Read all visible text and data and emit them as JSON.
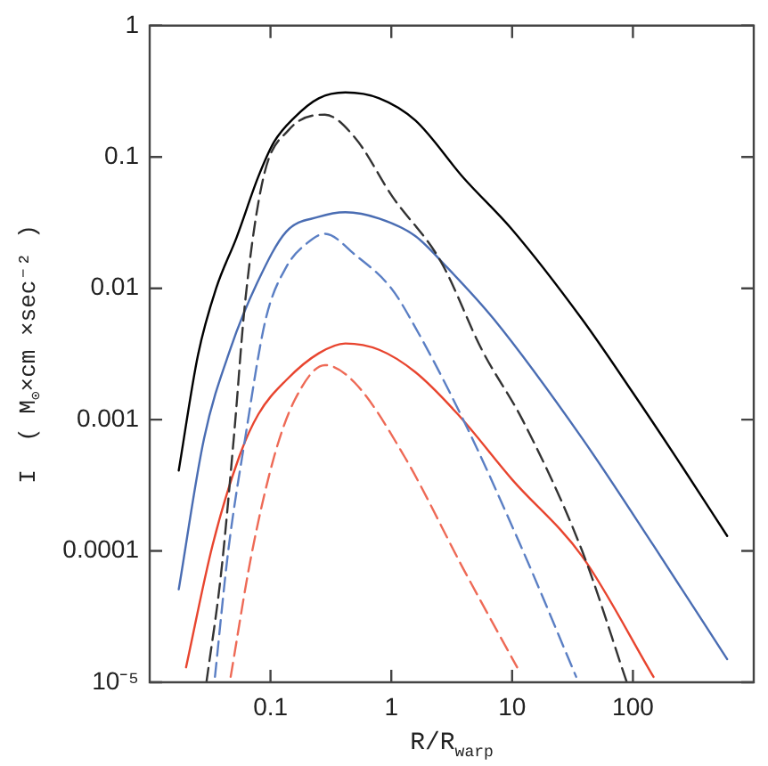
{
  "chart_data": {
    "type": "line",
    "xlabel": "R/R$_{warp}$",
    "ylabel": "I  ( M$_{⊙}$×cm ×sec⁻² )",
    "log": "xy",
    "grid": false,
    "legend": false,
    "marker": "none",
    "xlim": [
      0.01,
      1000
    ],
    "xticks": [
      0.1,
      1,
      10,
      100
    ],
    "ylim": [
      1e-05,
      1
    ],
    "yticks": [
      {
        "value": 1e-05,
        "label": "10⁻⁵"
      },
      0.0001,
      0.001,
      0.01,
      0.1,
      1
    ],
    "series": [
      {
        "color": "#000000",
        "line_style": "solid",
        "x": [
          0.0174,
          0.0251,
          0.0355,
          0.0525,
          0.0794,
          0.107,
          0.158,
          0.251,
          0.417,
          0.794,
          1.58,
          3.98,
          10,
          38,
          100,
          251,
          603
        ],
        "values": [
          0.00041,
          0.0031,
          0.01,
          0.0245,
          0.071,
          0.13,
          0.2,
          0.28,
          0.31,
          0.28,
          0.19,
          0.069,
          0.028,
          0.0058,
          0.0016,
          0.00045,
          0.00013
        ]
      },
      {
        "color": "#333333",
        "line_style": "dashed",
        "x": [
          0.0295,
          0.0389,
          0.0501,
          0.0617,
          0.0871,
          0.141,
          0.282,
          0.501,
          1.02,
          2.57,
          5.62,
          12.3,
          38,
          89
        ],
        "values": [
          1e-05,
          6.6e-05,
          0.00079,
          0.0079,
          0.069,
          0.16,
          0.21,
          0.14,
          0.05,
          0.016,
          0.0034,
          0.00098,
          0.0001,
          1e-05
        ]
      },
      {
        "color": "#4a6db3",
        "line_style": "solid",
        "x": [
          0.0174,
          0.0282,
          0.0468,
          0.0776,
          0.135,
          0.251,
          0.417,
          0.794,
          1.58,
          2.88,
          7.08,
          38,
          148,
          603
        ],
        "values": [
          5.1e-05,
          0.00072,
          0.0035,
          0.011,
          0.027,
          0.035,
          0.038,
          0.034,
          0.025,
          0.0145,
          0.0058,
          0.00072,
          0.00011,
          1.5e-05
        ]
      },
      {
        "color": "#5b7fc4",
        "line_style": "dashed",
        "x": [
          0.0347,
          0.0447,
          0.0617,
          0.0912,
          0.135,
          0.2,
          0.282,
          0.501,
          1,
          1.45,
          3.98,
          12.3,
          33.9
        ],
        "values": [
          1.1e-05,
          0.0001,
          0.00072,
          0.0058,
          0.0145,
          0.022,
          0.026,
          0.018,
          0.01,
          0.0058,
          0.00098,
          0.0001,
          1.1e-05
        ]
      },
      {
        "color": "#e8452f",
        "line_style": "solid",
        "x": [
          0.02,
          0.0331,
          0.055,
          0.0794,
          0.135,
          0.251,
          0.417,
          0.794,
          1.58,
          3.55,
          10,
          38,
          148
        ],
        "values": [
          1.3e-05,
          0.00011,
          0.00052,
          0.0011,
          0.002,
          0.0032,
          0.0038,
          0.0034,
          0.0023,
          0.0011,
          0.00035,
          9.1e-05,
          1.1e-05
        ]
      },
      {
        "color": "#ee6a56",
        "line_style": "dashed",
        "x": [
          0.0468,
          0.0692,
          0.107,
          0.158,
          0.282,
          0.501,
          1.29,
          3.98,
          11
        ],
        "values": [
          1.1e-05,
          9.1e-05,
          0.00052,
          0.0014,
          0.0026,
          0.0019,
          0.00052,
          7.2e-05,
          1.3e-05
        ]
      }
    ]
  }
}
